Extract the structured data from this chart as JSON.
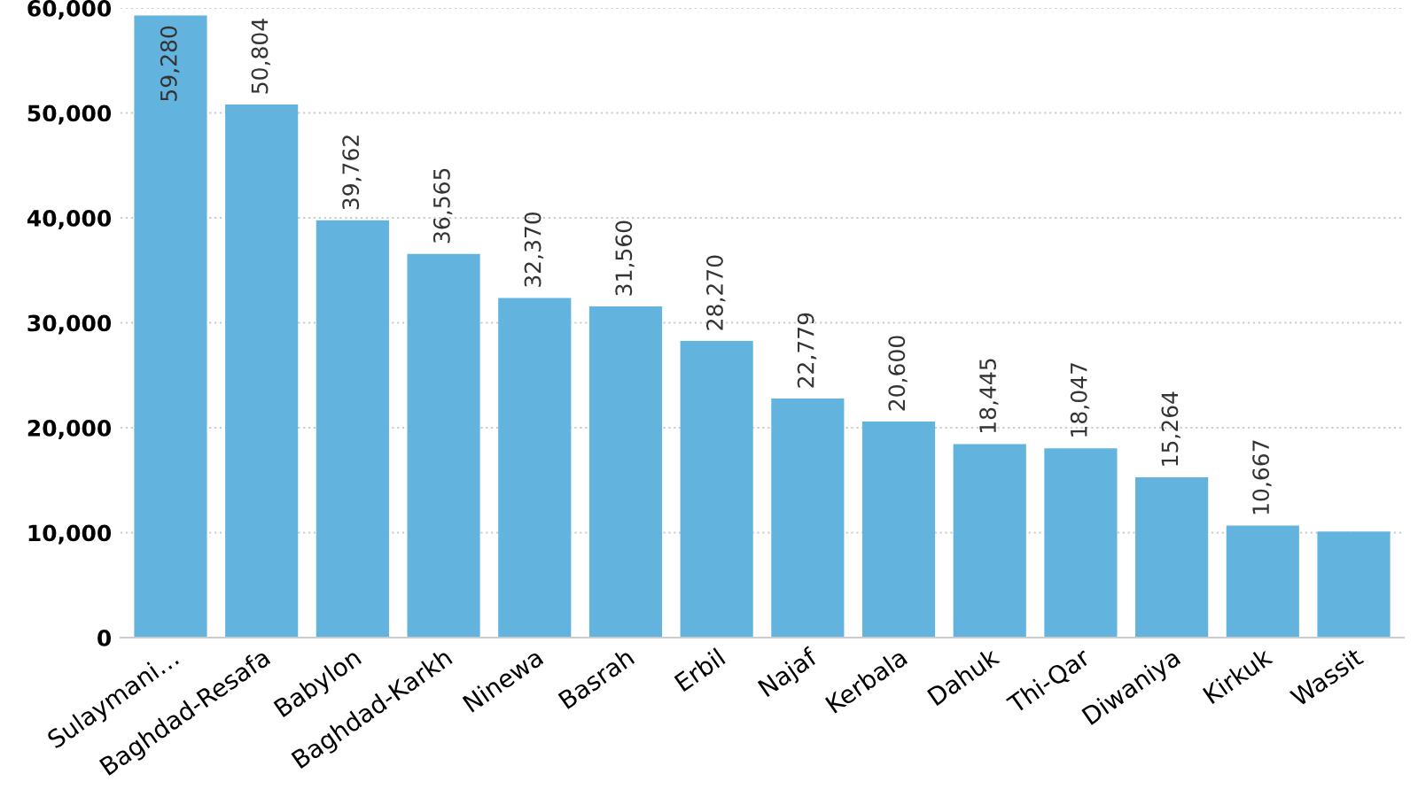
{
  "chart_data": {
    "type": "bar",
    "categories": [
      "Sulaymani…",
      "Baghdad-Resafa",
      "Babylon",
      "Baghdad-Karkh",
      "Ninewa",
      "Basrah",
      "Erbil",
      "Najaf",
      "Kerbala",
      "Dahuk",
      "Thi-Qar",
      "Diwaniya",
      "Kirkuk",
      "Wassit"
    ],
    "values": [
      59280,
      50804,
      39762,
      36565,
      32370,
      31560,
      28270,
      22779,
      20600,
      18445,
      18047,
      15264,
      10667,
      10100
    ],
    "value_labels": [
      "59,280",
      "50,804",
      "39,762",
      "36,565",
      "32,370",
      "31,560",
      "28,270",
      "22,779",
      "20,600",
      "18,445",
      "18,047",
      "15,264",
      "10,667",
      null
    ],
    "color": "#62b4de",
    "ylim": [
      0,
      60000
    ],
    "yticks": [
      {
        "value": 0,
        "label": "0"
      },
      {
        "value": 10000,
        "label": "10,000"
      },
      {
        "value": 20000,
        "label": "20,000"
      },
      {
        "value": 30000,
        "label": "30,000"
      },
      {
        "value": 40000,
        "label": "40,000"
      },
      {
        "value": 50000,
        "label": "50,000"
      },
      {
        "value": 60000,
        "label": "60,000"
      }
    ],
    "grid": "y"
  }
}
